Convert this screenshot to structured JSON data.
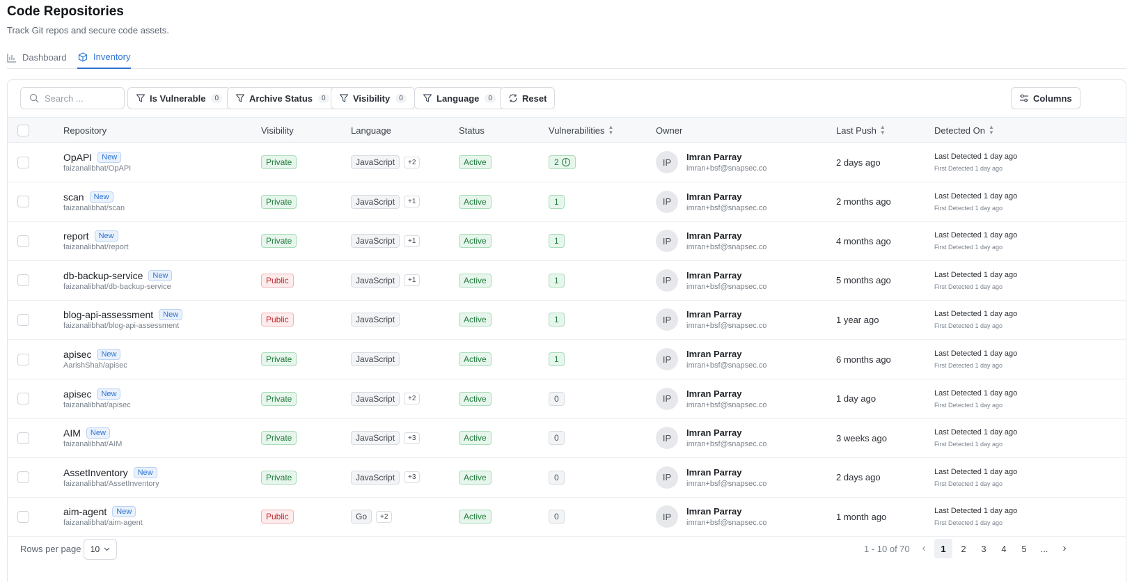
{
  "header": {
    "title": "Code Repositories",
    "subtitle": "Track Git repos and secure code assets."
  },
  "tabs": [
    {
      "label": "Dashboard",
      "icon": "bar-chart-icon",
      "active": false
    },
    {
      "label": "Inventory",
      "icon": "cube-icon",
      "active": true
    }
  ],
  "toolbar": {
    "search_placeholder": "Search ...",
    "filters": [
      {
        "label": "Is Vulnerable",
        "count": "0"
      },
      {
        "label": "Archive Status",
        "count": "0"
      },
      {
        "label": "Visibility",
        "count": "0"
      },
      {
        "label": "Language",
        "count": "0"
      }
    ],
    "reset_label": "Reset",
    "columns_label": "Columns"
  },
  "table": {
    "headers": {
      "repository": "Repository",
      "visibility": "Visibility",
      "language": "Language",
      "status": "Status",
      "vulnerabilities": "Vulnerabilities",
      "owner": "Owner",
      "last_push": "Last Push",
      "detected_on": "Detected On"
    },
    "rows": [
      {
        "name": "OpAPI",
        "badge": "New",
        "path": "faizanalibhat/OpAPI",
        "visibility": "Private",
        "language": "JavaScript",
        "lang_more": "+2",
        "status": "Active",
        "vulns": "2",
        "vuln_info": true,
        "avatar": "IP",
        "owner": "Imran Parray",
        "email": "imran+bsf@snapsec.co",
        "last_push": "2 days ago",
        "last_detected": "Last Detected 1 day ago",
        "first_detected": "First Detected 1 day ago"
      },
      {
        "name": "scan",
        "badge": "New",
        "path": "faizanalibhat/scan",
        "visibility": "Private",
        "language": "JavaScript",
        "lang_more": "+1",
        "status": "Active",
        "vulns": "1",
        "vuln_info": false,
        "avatar": "IP",
        "owner": "Imran Parray",
        "email": "imran+bsf@snapsec.co",
        "last_push": "2 months ago",
        "last_detected": "Last Detected 1 day ago",
        "first_detected": "First Detected 1 day ago"
      },
      {
        "name": "report",
        "badge": "New",
        "path": "faizanalibhat/report",
        "visibility": "Private",
        "language": "JavaScript",
        "lang_more": "+1",
        "status": "Active",
        "vulns": "1",
        "vuln_info": false,
        "avatar": "IP",
        "owner": "Imran Parray",
        "email": "imran+bsf@snapsec.co",
        "last_push": "4 months ago",
        "last_detected": "Last Detected 1 day ago",
        "first_detected": "First Detected 1 day ago"
      },
      {
        "name": "db-backup-service",
        "badge": "New",
        "path": "faizanalibhat/db-backup-service",
        "visibility": "Public",
        "language": "JavaScript",
        "lang_more": "+1",
        "status": "Active",
        "vulns": "1",
        "vuln_info": false,
        "avatar": "IP",
        "owner": "Imran Parray",
        "email": "imran+bsf@snapsec.co",
        "last_push": "5 months ago",
        "last_detected": "Last Detected 1 day ago",
        "first_detected": "First Detected 1 day ago"
      },
      {
        "name": "blog-api-assessment",
        "badge": "New",
        "path": "faizanalibhat/blog-api-assessment",
        "visibility": "Public",
        "language": "JavaScript",
        "lang_more": "",
        "status": "Active",
        "vulns": "1",
        "vuln_info": false,
        "avatar": "IP",
        "owner": "Imran Parray",
        "email": "imran+bsf@snapsec.co",
        "last_push": "1 year ago",
        "last_detected": "Last Detected 1 day ago",
        "first_detected": "First Detected 1 day ago"
      },
      {
        "name": "apisec",
        "badge": "New",
        "path": "AarishShah/apisec",
        "visibility": "Private",
        "language": "JavaScript",
        "lang_more": "",
        "status": "Active",
        "vulns": "1",
        "vuln_info": false,
        "avatar": "IP",
        "owner": "Imran Parray",
        "email": "imran+bsf@snapsec.co",
        "last_push": "6 months ago",
        "last_detected": "Last Detected 1 day ago",
        "first_detected": "First Detected 1 day ago"
      },
      {
        "name": "apisec",
        "badge": "New",
        "path": "faizanalibhat/apisec",
        "visibility": "Private",
        "language": "JavaScript",
        "lang_more": "+2",
        "status": "Active",
        "vulns": "0",
        "vuln_info": false,
        "avatar": "IP",
        "owner": "Imran Parray",
        "email": "imran+bsf@snapsec.co",
        "last_push": "1 day ago",
        "last_detected": "Last Detected 1 day ago",
        "first_detected": "First Detected 1 day ago"
      },
      {
        "name": "AIM",
        "badge": "New",
        "path": "faizanalibhat/AIM",
        "visibility": "Private",
        "language": "JavaScript",
        "lang_more": "+3",
        "status": "Active",
        "vulns": "0",
        "vuln_info": false,
        "avatar": "IP",
        "owner": "Imran Parray",
        "email": "imran+bsf@snapsec.co",
        "last_push": "3 weeks ago",
        "last_detected": "Last Detected 1 day ago",
        "first_detected": "First Detected 1 day ago"
      },
      {
        "name": "AssetInventory",
        "badge": "New",
        "path": "faizanalibhat/AssetInventory",
        "visibility": "Private",
        "language": "JavaScript",
        "lang_more": "+3",
        "status": "Active",
        "vulns": "0",
        "vuln_info": false,
        "avatar": "IP",
        "owner": "Imran Parray",
        "email": "imran+bsf@snapsec.co",
        "last_push": "2 days ago",
        "last_detected": "Last Detected 1 day ago",
        "first_detected": "First Detected 1 day ago"
      },
      {
        "name": "aim-agent",
        "badge": "New",
        "path": "faizanalibhat/aim-agent",
        "visibility": "Public",
        "language": "Go",
        "lang_more": "+2",
        "status": "Active",
        "vulns": "0",
        "vuln_info": false,
        "avatar": "IP",
        "owner": "Imran Parray",
        "email": "imran+bsf@snapsec.co",
        "last_push": "1 month ago",
        "last_detected": "Last Detected 1 day ago",
        "first_detected": "First Detected 1 day ago"
      }
    ]
  },
  "footer": {
    "rows_per_page_label": "Rows per page",
    "rows_per_page_value": "10",
    "range": "1 - 10 of 70",
    "pages": [
      "1",
      "2",
      "3",
      "4",
      "5",
      "..."
    ],
    "current_page": "1"
  },
  "colors": {
    "accent": "#2f74d0",
    "success": "#207a3d",
    "danger": "#c0262d"
  }
}
